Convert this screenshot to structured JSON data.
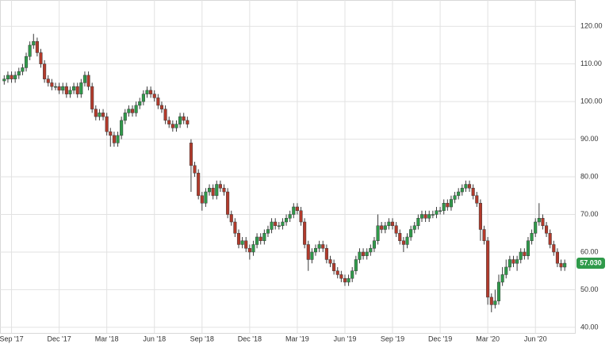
{
  "chart_data": {
    "type": "candlestick",
    "categories": [
      null,
      null,
      "Sep '17",
      null,
      null,
      null,
      null,
      null,
      null,
      null,
      null,
      null,
      null,
      null,
      null,
      "Dec '17",
      null,
      null,
      null,
      null,
      null,
      null,
      null,
      null,
      null,
      null,
      null,
      null,
      "Mar '18",
      null,
      null,
      null,
      null,
      null,
      null,
      null,
      null,
      null,
      null,
      null,
      null,
      "Jun '18",
      null,
      null,
      null,
      null,
      null,
      null,
      null,
      null,
      null,
      null,
      null,
      null,
      "Sep '18",
      null,
      null,
      null,
      null,
      null,
      null,
      null,
      null,
      null,
      null,
      null,
      null,
      "Dec '18",
      null,
      null,
      null,
      null,
      null,
      null,
      null,
      null,
      null,
      null,
      null,
      null,
      "Mar '19",
      null,
      null,
      null,
      null,
      null,
      null,
      null,
      null,
      null,
      null,
      null,
      null,
      "Jun '19",
      null,
      null,
      null,
      null,
      null,
      null,
      null,
      null,
      null,
      null,
      null,
      null,
      "Sep '19",
      null,
      null,
      null,
      null,
      null,
      null,
      null,
      null,
      null,
      null,
      null,
      null,
      "Dec '19",
      null,
      null,
      null,
      null,
      null,
      null,
      null,
      null,
      null,
      null,
      null,
      null,
      "Mar '20",
      null,
      null,
      null,
      null,
      null,
      null,
      null,
      null,
      null,
      null,
      null,
      null,
      "Jun '20",
      null,
      null,
      null,
      null,
      null,
      null,
      null,
      null
    ],
    "ohlc": [
      [
        105.5,
        107,
        104.5,
        106
      ],
      [
        106,
        108,
        105,
        107
      ],
      [
        107,
        108,
        105,
        106
      ],
      [
        106,
        108,
        105,
        107
      ],
      [
        107,
        109,
        106,
        108
      ],
      [
        108,
        110,
        107,
        109
      ],
      [
        109,
        113,
        108,
        112
      ],
      [
        112,
        116,
        111,
        115
      ],
      [
        115,
        118,
        114,
        116
      ],
      [
        116,
        117,
        112,
        113
      ],
      [
        113,
        114,
        109,
        110
      ],
      [
        110,
        111,
        105,
        106
      ],
      [
        106,
        107,
        104,
        105
      ],
      [
        105,
        106,
        103,
        104
      ],
      [
        104,
        105,
        103,
        104
      ],
      [
        104,
        105,
        102,
        103
      ],
      [
        103,
        105,
        102,
        104
      ],
      [
        104,
        105,
        101,
        102
      ],
      [
        102,
        104,
        101,
        103
      ],
      [
        103,
        105,
        102,
        104
      ],
      [
        104,
        105,
        101,
        102
      ],
      [
        102,
        106,
        101,
        105
      ],
      [
        105,
        108,
        104,
        107
      ],
      [
        107,
        108,
        103,
        104
      ],
      [
        104,
        105,
        97,
        98
      ],
      [
        98,
        99,
        95,
        96
      ],
      [
        96,
        98,
        95,
        97
      ],
      [
        97,
        98,
        95,
        96
      ],
      [
        96,
        97,
        91,
        92
      ],
      [
        92,
        93,
        88,
        91
      ],
      [
        91,
        92,
        88,
        89
      ],
      [
        89,
        92,
        88,
        91
      ],
      [
        91,
        96,
        90,
        95
      ],
      [
        95,
        98,
        94,
        97
      ],
      [
        97,
        99,
        96,
        98
      ],
      [
        98,
        99,
        96,
        97
      ],
      [
        97,
        100,
        96,
        99
      ],
      [
        99,
        101,
        98,
        100
      ],
      [
        100,
        103,
        99,
        102
      ],
      [
        102,
        104,
        101,
        103
      ],
      [
        103,
        104,
        101,
        102
      ],
      [
        102,
        103,
        100,
        101
      ],
      [
        101,
        102,
        98,
        99
      ],
      [
        99,
        100,
        97,
        98
      ],
      [
        98,
        99,
        94,
        95
      ],
      [
        95,
        96,
        93,
        94
      ],
      [
        94,
        95,
        92,
        93
      ],
      [
        93,
        95,
        92,
        94
      ],
      [
        94,
        97,
        93,
        96
      ],
      [
        96,
        97,
        94,
        95
      ],
      [
        95,
        96,
        93,
        94
      ],
      [
        89,
        90,
        76,
        83
      ],
      [
        83,
        84,
        80,
        81
      ],
      [
        81,
        82,
        74,
        75
      ],
      [
        75,
        76,
        71,
        73
      ],
      [
        73,
        77,
        72,
        76
      ],
      [
        76,
        78,
        75,
        77
      ],
      [
        77,
        78,
        74,
        75
      ],
      [
        75,
        79,
        74,
        78
      ],
      [
        78,
        79,
        76,
        77
      ],
      [
        77,
        78,
        75,
        76
      ],
      [
        76,
        77,
        69,
        70
      ],
      [
        70,
        71,
        67,
        68
      ],
      [
        68,
        69,
        64,
        65
      ],
      [
        65,
        66,
        61,
        62
      ],
      [
        62,
        64,
        61,
        63
      ],
      [
        63,
        64,
        60,
        61
      ],
      [
        61,
        62,
        58,
        60
      ],
      [
        60,
        63,
        59,
        62
      ],
      [
        62,
        65,
        61,
        64
      ],
      [
        64,
        65,
        62,
        63
      ],
      [
        63,
        66,
        62,
        65
      ],
      [
        65,
        67,
        64,
        66
      ],
      [
        66,
        69,
        65,
        68
      ],
      [
        68,
        69,
        66,
        67
      ],
      [
        67,
        68,
        66,
        67
      ],
      [
        67,
        69,
        66,
        68
      ],
      [
        68,
        70,
        67,
        69
      ],
      [
        69,
        71,
        68,
        70
      ],
      [
        70,
        73,
        69,
        72
      ],
      [
        72,
        73,
        70,
        71
      ],
      [
        71,
        72,
        67,
        68
      ],
      [
        68,
        69,
        61,
        62
      ],
      [
        62,
        63,
        55,
        58
      ],
      [
        58,
        61,
        57,
        60
      ],
      [
        60,
        62,
        59,
        61
      ],
      [
        61,
        63,
        60,
        62
      ],
      [
        62,
        63,
        60,
        61
      ],
      [
        61,
        62,
        57,
        58
      ],
      [
        58,
        59,
        56,
        57
      ],
      [
        57,
        58,
        54,
        55
      ],
      [
        55,
        56,
        53,
        54
      ],
      [
        54,
        55,
        52,
        53
      ],
      [
        53,
        54,
        51,
        52
      ],
      [
        52,
        54,
        51,
        53
      ],
      [
        53,
        56,
        52,
        55
      ],
      [
        55,
        59,
        54,
        58
      ],
      [
        58,
        61,
        57,
        60
      ],
      [
        60,
        61,
        58,
        59
      ],
      [
        59,
        61,
        58,
        60
      ],
      [
        60,
        62,
        59,
        61
      ],
      [
        61,
        64,
        60,
        63
      ],
      [
        63,
        70,
        62,
        67
      ],
      [
        67,
        68,
        65,
        66
      ],
      [
        66,
        68,
        65,
        67
      ],
      [
        67,
        69,
        66,
        68
      ],
      [
        68,
        69,
        66,
        67
      ],
      [
        67,
        68,
        64,
        65
      ],
      [
        65,
        66,
        62,
        63
      ],
      [
        63,
        64,
        60,
        62
      ],
      [
        62,
        65,
        61,
        64
      ],
      [
        64,
        67,
        63,
        66
      ],
      [
        66,
        68,
        65,
        67
      ],
      [
        67,
        70,
        66,
        69
      ],
      [
        69,
        71,
        68,
        70
      ],
      [
        70,
        71,
        68,
        69
      ],
      [
        69,
        71,
        68,
        70
      ],
      [
        70,
        71,
        69,
        70
      ],
      [
        70,
        72,
        69,
        71
      ],
      [
        71,
        72,
        70,
        71
      ],
      [
        71,
        74,
        70,
        73
      ],
      [
        73,
        74,
        71,
        72
      ],
      [
        72,
        75,
        71,
        74
      ],
      [
        74,
        76,
        73,
        75
      ],
      [
        75,
        77,
        74,
        76
      ],
      [
        76,
        78,
        75,
        77
      ],
      [
        77,
        79,
        76,
        78
      ],
      [
        78,
        79,
        76,
        77
      ],
      [
        77,
        78,
        74,
        75
      ],
      [
        75,
        76,
        72,
        73
      ],
      [
        73,
        74,
        63,
        66
      ],
      [
        66,
        67,
        62,
        63
      ],
      [
        63,
        64,
        46,
        48
      ],
      [
        48,
        49,
        44,
        46
      ],
      [
        46,
        50,
        45,
        47
      ],
      [
        47,
        54,
        46,
        52
      ],
      [
        52,
        56,
        51,
        54
      ],
      [
        54,
        58,
        53,
        56
      ],
      [
        56,
        59,
        55,
        58
      ],
      [
        58,
        59,
        56,
        57
      ],
      [
        57,
        59,
        55,
        58
      ],
      [
        58,
        61,
        57,
        60
      ],
      [
        60,
        61,
        58,
        59
      ],
      [
        59,
        64,
        58,
        63
      ],
      [
        63,
        66,
        62,
        65
      ],
      [
        65,
        69,
        64,
        68
      ],
      [
        68,
        73,
        67,
        69
      ],
      [
        69,
        70,
        66,
        67
      ],
      [
        67,
        68,
        64,
        65
      ],
      [
        65,
        66,
        61,
        62
      ],
      [
        62,
        63,
        59,
        60
      ],
      [
        60,
        61,
        56,
        57
      ],
      [
        57,
        58,
        55,
        56
      ],
      [
        56,
        58,
        55,
        57.03
      ]
    ],
    "up_color": "#2f9a4a",
    "down_color": "#b23a2b",
    "ylim": [
      38.5,
      127
    ],
    "yticks": [
      {
        "value": 40,
        "label": "40.00"
      },
      {
        "value": 50,
        "label": "50.00"
      },
      {
        "value": 60,
        "label": "60.00"
      },
      {
        "value": 70,
        "label": "70.00"
      },
      {
        "value": 80,
        "label": "80.00"
      },
      {
        "value": 90,
        "label": "90.00"
      },
      {
        "value": 100,
        "label": "100.00"
      },
      {
        "value": 110,
        "label": "110.00"
      },
      {
        "value": 120,
        "label": "120.00"
      }
    ],
    "last_value": {
      "value": 57.03,
      "label": "57.030"
    },
    "grid": true
  }
}
